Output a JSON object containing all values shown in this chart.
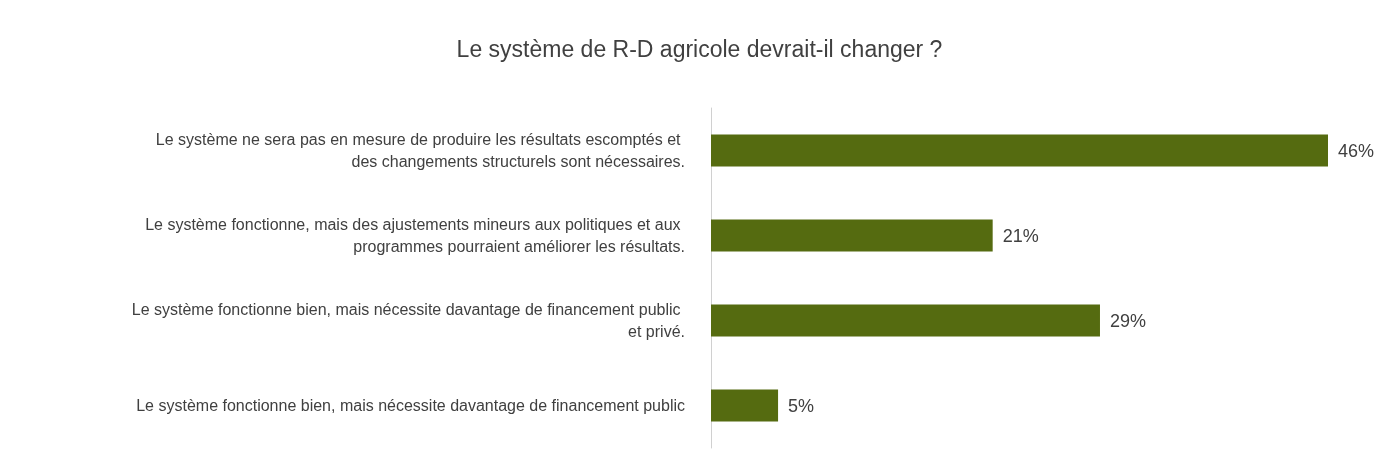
{
  "chart_data": {
    "type": "bar",
    "orientation": "horizontal",
    "title": "Le système de R-D agricole devrait-il changer ?",
    "categories": [
      "Le système ne sera pas en mesure de produire les résultats escomptés et des changements structurels sont nécessaires.",
      "Le système fonctionne, mais des ajustements mineurs aux politiques et aux programmes pourraient améliorer les résultats.",
      "Le système fonctionne bien, mais nécessite davantage de financement public et privé.",
      "Le système fonctionne bien, mais nécessite davantage de financement public"
    ],
    "values": [
      46,
      21,
      29,
      5
    ],
    "value_labels": [
      "46%",
      "21%",
      "29%",
      "5%"
    ],
    "color": "#556b10"
  }
}
